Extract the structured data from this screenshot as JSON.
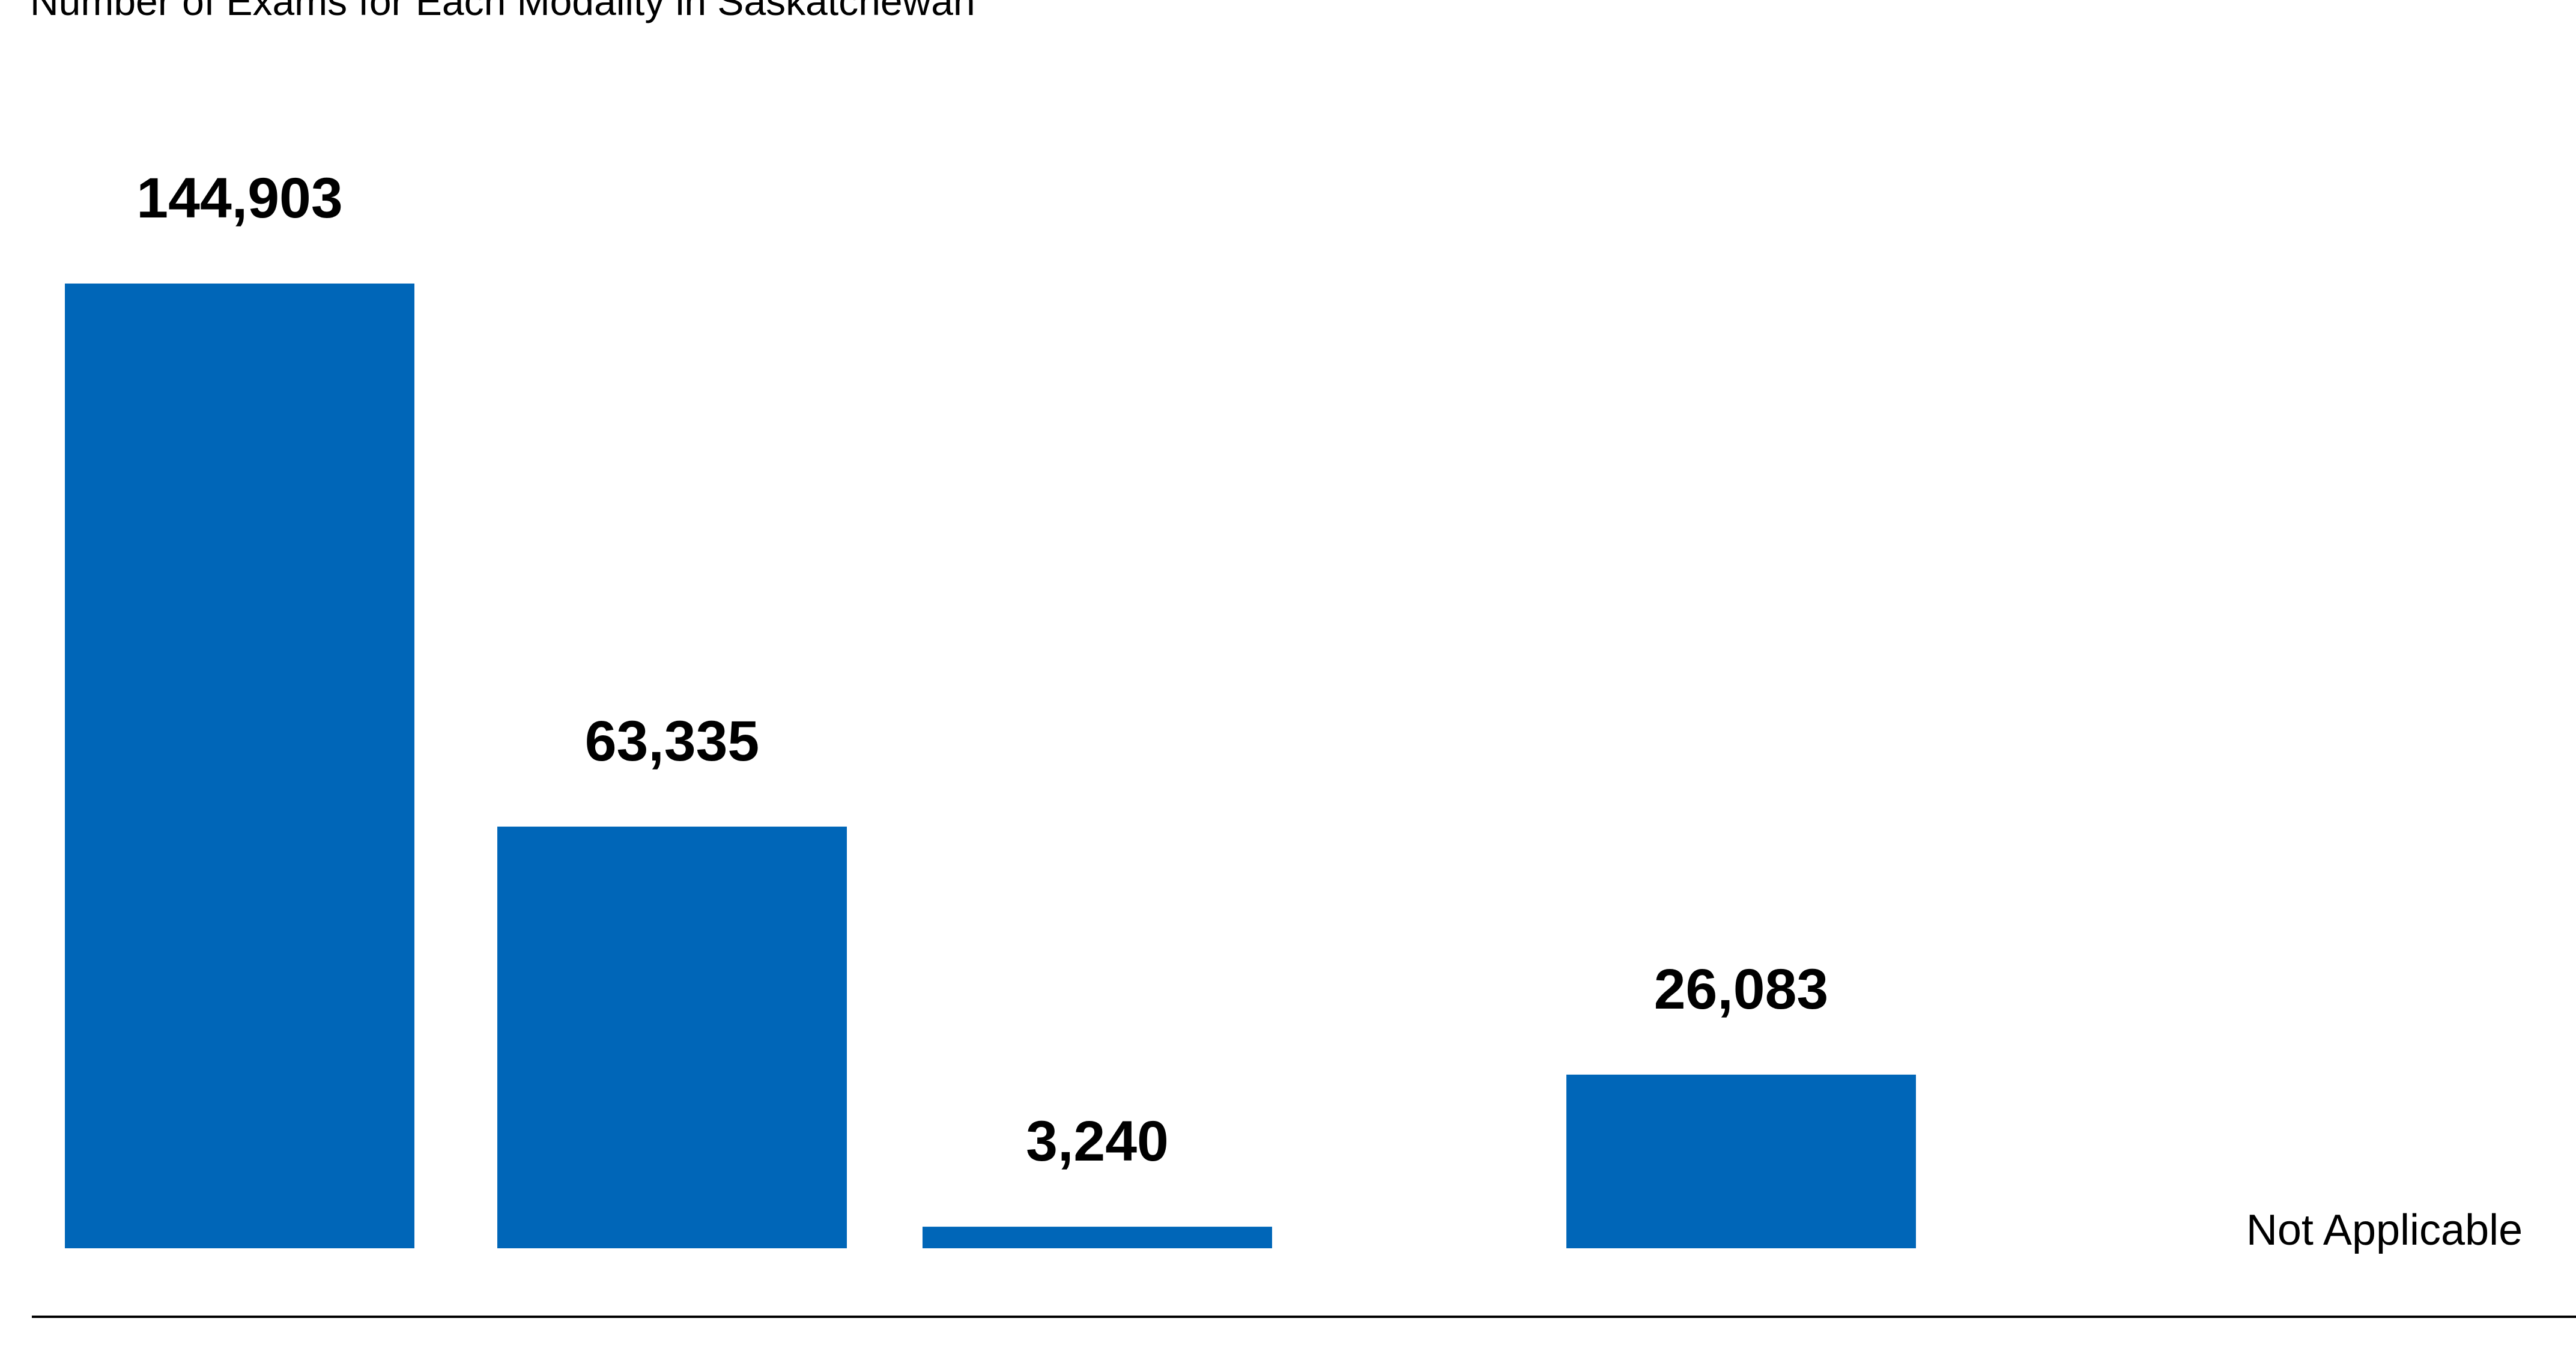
{
  "chart_data": {
    "type": "bar",
    "title": "Number of Exams for Each Modality in Saskatchewan",
    "xlabel": "",
    "ylabel": "",
    "ylim": [
      0,
      144903
    ],
    "grid": false,
    "legend": "none",
    "bar_color": "#0066B8",
    "axis_color": "#000000",
    "values": [
      144903,
      63335,
      3240,
      null,
      26083,
      null
    ],
    "value_labels": [
      "144,903",
      "63,335",
      "3,240",
      "",
      "26,083",
      "Not Applicable"
    ]
  }
}
